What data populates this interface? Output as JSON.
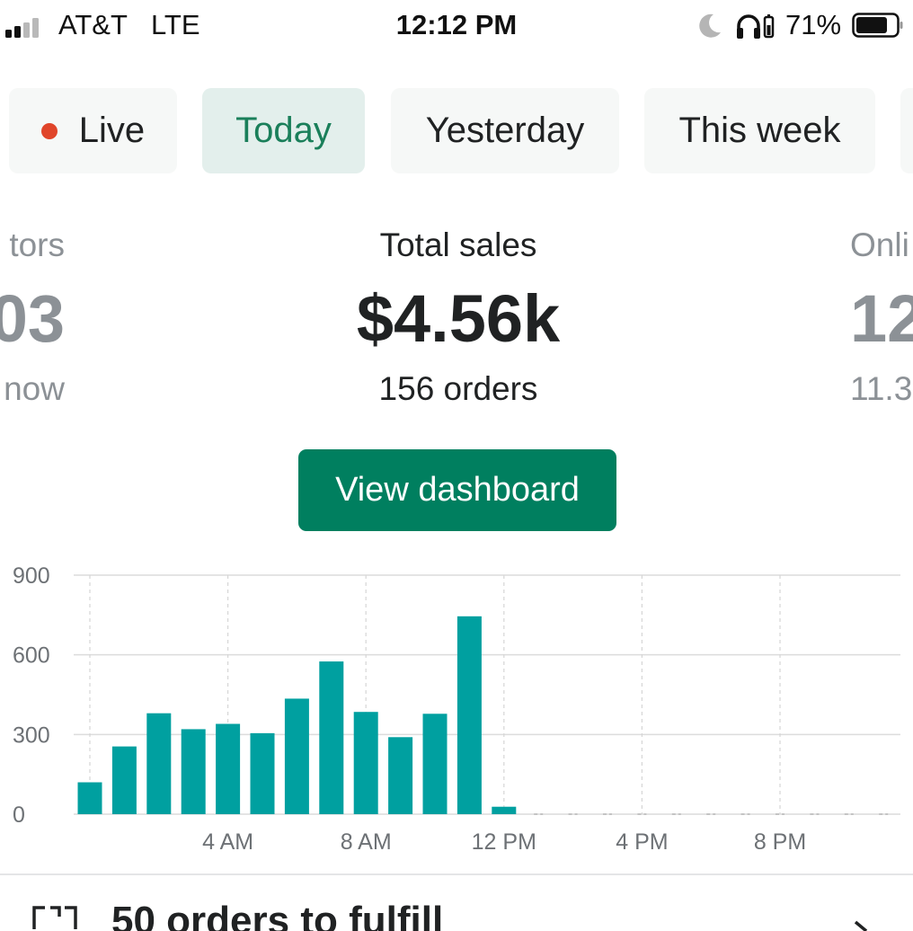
{
  "status_bar": {
    "carrier": "AT&T",
    "network": "LTE",
    "time": "12:12 PM",
    "battery_percent": "71%",
    "icons": [
      "signal-icon",
      "moon-icon",
      "headphones-icon",
      "battery-icon"
    ]
  },
  "tabs": [
    {
      "label": "Live",
      "has_live_dot": true,
      "active": false
    },
    {
      "label": "Today",
      "active": true
    },
    {
      "label": "Yesterday",
      "active": false
    },
    {
      "label": "This week",
      "active": false
    }
  ],
  "stats": {
    "left_partial": {
      "label": "tors",
      "value": "03",
      "sub": "now"
    },
    "main": {
      "label": "Total sales",
      "value": "$4.56k",
      "sub": "156 orders"
    },
    "right_partial": {
      "label": "Onli",
      "value": "12",
      "sub": "11.3"
    }
  },
  "dashboard_button": {
    "label": "View dashboard"
  },
  "colors": {
    "accent": "#007f5f",
    "bar": "#00a0a0",
    "live_dot": "#e0452a",
    "active_tab_bg": "#e3efec",
    "active_tab_text": "#1a7f5a"
  },
  "chart_data": {
    "type": "bar",
    "x": [
      "12 AM",
      "1 AM",
      "2 AM",
      "3 AM",
      "4 AM",
      "5 AM",
      "6 AM",
      "7 AM",
      "8 AM",
      "9 AM",
      "10 AM",
      "11 AM",
      "12 PM",
      "1 PM",
      "2 PM",
      "3 PM",
      "4 PM",
      "5 PM",
      "6 PM",
      "7 PM",
      "8 PM",
      "9 PM",
      "10 PM",
      "11 PM"
    ],
    "values": [
      120,
      255,
      380,
      320,
      340,
      305,
      435,
      575,
      385,
      290,
      378,
      745,
      28,
      0,
      0,
      0,
      0,
      0,
      0,
      0,
      0,
      0,
      0,
      0
    ],
    "y_ticks": [
      "0",
      "300",
      "600",
      "900"
    ],
    "x_tick_labels": [
      "4 AM",
      "8 AM",
      "12 PM",
      "4 PM",
      "8 PM"
    ],
    "ylim": [
      0,
      900
    ],
    "grid": true,
    "title": "",
    "xlabel": "",
    "ylabel": ""
  },
  "bottom_row": {
    "text": "50 orders to fulfill"
  }
}
